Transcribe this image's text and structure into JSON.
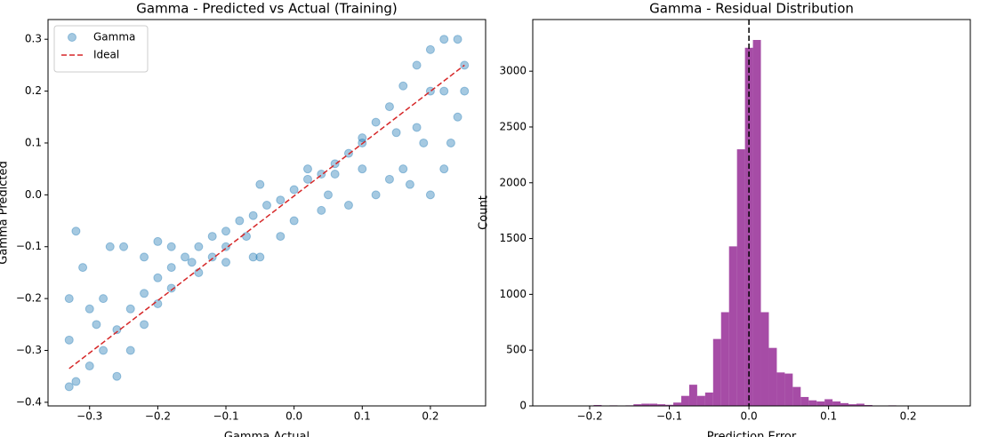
{
  "chart_data": [
    {
      "type": "scatter",
      "title": "Gamma - Predicted vs Actual (Training)",
      "x_label": "Gamma Actual",
      "y_label": "Gamma Predicted",
      "xlim": [
        -0.361,
        0.281
      ],
      "ylim": [
        -0.407,
        0.338
      ],
      "xticks": [
        {
          "value": -0.3,
          "label": "−0.3"
        },
        {
          "value": -0.2,
          "label": "−0.2"
        },
        {
          "value": -0.1,
          "label": "−0.1"
        },
        {
          "value": 0,
          "label": "0.0"
        },
        0.1,
        0.2
      ],
      "yticks": [
        {
          "value": -0.4,
          "label": "−0.4"
        },
        {
          "value": -0.3,
          "label": "−0.3"
        },
        {
          "value": -0.2,
          "label": "−0.2"
        },
        {
          "value": -0.1,
          "label": "−0.1"
        },
        {
          "value": 0,
          "label": "0.0"
        },
        0.1,
        0.2,
        0.3
      ],
      "legend": "upper left",
      "series": [
        {
          "name": "Gamma",
          "type": "scatter",
          "color": "#1f77b4",
          "alpha": 0.4,
          "x": [
            -0.33,
            -0.32,
            -0.3,
            -0.28,
            -0.26,
            -0.24,
            -0.22,
            -0.2,
            -0.18,
            -0.16,
            -0.14,
            -0.12,
            -0.1,
            -0.08,
            -0.06,
            -0.04,
            -0.02,
            0,
            0.02,
            0.04,
            0.06,
            0.08,
            0.1,
            0.12,
            0.14,
            0.16,
            0.18,
            0.2,
            0.22,
            0.24,
            0.25,
            0.25,
            0.24,
            0.23,
            0.22,
            0.2,
            0.18,
            0.17,
            0.16,
            0.14,
            0.12,
            0.1,
            0.08,
            0.06,
            0.04,
            0.02,
            0,
            -0.02,
            -0.05,
            -0.05,
            -0.07,
            -0.1,
            -0.12,
            -0.15,
            -0.18,
            -0.2,
            -0.22,
            -0.25,
            -0.27,
            -0.28,
            -0.29,
            -0.3,
            -0.31,
            -0.32,
            -0.33,
            -0.33,
            -0.26,
            -0.24,
            -0.22,
            -0.2,
            -0.18,
            -0.14,
            -0.1,
            -0.06,
            0.2,
            0.22,
            0.19,
            0.15,
            0.1,
            0.05
          ],
          "values": [
            -0.37,
            -0.36,
            -0.33,
            -0.3,
            -0.26,
            -0.22,
            -0.19,
            -0.16,
            -0.14,
            -0.12,
            -0.1,
            -0.08,
            -0.07,
            -0.05,
            -0.04,
            -0.02,
            -0.01,
            0.01,
            0.03,
            0.04,
            0.06,
            0.08,
            0.11,
            0.14,
            0.17,
            0.21,
            0.25,
            0.28,
            0.3,
            0.3,
            0.25,
            0.2,
            0.15,
            0.1,
            0.2,
            0.2,
            0.13,
            0.02,
            0.05,
            0.03,
            0,
            0.05,
            -0.02,
            0.04,
            -0.03,
            0.05,
            -0.05,
            -0.08,
            -0.12,
            0.02,
            -0.08,
            -0.1,
            -0.12,
            -0.13,
            -0.1,
            -0.09,
            -0.12,
            -0.1,
            -0.1,
            -0.2,
            -0.25,
            -0.22,
            -0.14,
            -0.07,
            -0.28,
            -0.2,
            -0.35,
            -0.3,
            -0.25,
            -0.21,
            -0.18,
            -0.15,
            -0.13,
            -0.12,
            0,
            0.05,
            0.1,
            0.12,
            0.1,
            0
          ]
        },
        {
          "name": "Ideal",
          "type": "line",
          "color": "#d62728",
          "dashed": true,
          "x": [
            -0.33,
            0.25
          ],
          "values": [
            -0.335,
            0.25
          ]
        }
      ]
    },
    {
      "type": "histogram",
      "title": "Gamma - Residual Distribution",
      "x_label": "Prediction Error",
      "y_label": "Count",
      "xlim": [
        -0.2715,
        0.278
      ],
      "ylim": [
        0,
        3463
      ],
      "xticks": [
        {
          "value": -0.2,
          "label": "−0.2"
        },
        {
          "value": -0.1,
          "label": "−0.1"
        },
        {
          "value": 0,
          "label": "0.0"
        },
        0.1,
        0.2
      ],
      "yticks": [
        0,
        500,
        1000,
        1500,
        2000,
        2500,
        3000
      ],
      "color": "#800080",
      "alpha": 0.7,
      "vline": 0,
      "bins": [
        -0.255,
        -0.245,
        -0.235,
        -0.225,
        -0.215,
        -0.205,
        -0.195,
        -0.185,
        -0.175,
        -0.165,
        -0.155,
        -0.145,
        -0.135,
        -0.125,
        -0.115,
        -0.105,
        -0.095,
        -0.085,
        -0.075,
        -0.065,
        -0.055,
        -0.045,
        -0.035,
        -0.025,
        -0.015,
        -0.005,
        0.005,
        0.015,
        0.025,
        0.035,
        0.045,
        0.055,
        0.065,
        0.075,
        0.085,
        0.095,
        0.105,
        0.115,
        0.125,
        0.135,
        0.145,
        0.155,
        0.165,
        0.175,
        0.185,
        0.195,
        0.205,
        0.215,
        0.225,
        0.235,
        0.245,
        0.255
      ],
      "values": [
        0,
        0,
        0,
        0,
        0,
        2,
        8,
        2,
        5,
        3,
        5,
        15,
        20,
        20,
        15,
        10,
        30,
        90,
        190,
        90,
        120,
        600,
        840,
        1430,
        2300,
        3210,
        3280,
        840,
        520,
        300,
        290,
        170,
        80,
        50,
        40,
        60,
        40,
        25,
        15,
        20,
        8,
        3,
        3,
        5,
        2,
        2,
        0,
        0,
        0,
        0,
        0
      ]
    }
  ]
}
